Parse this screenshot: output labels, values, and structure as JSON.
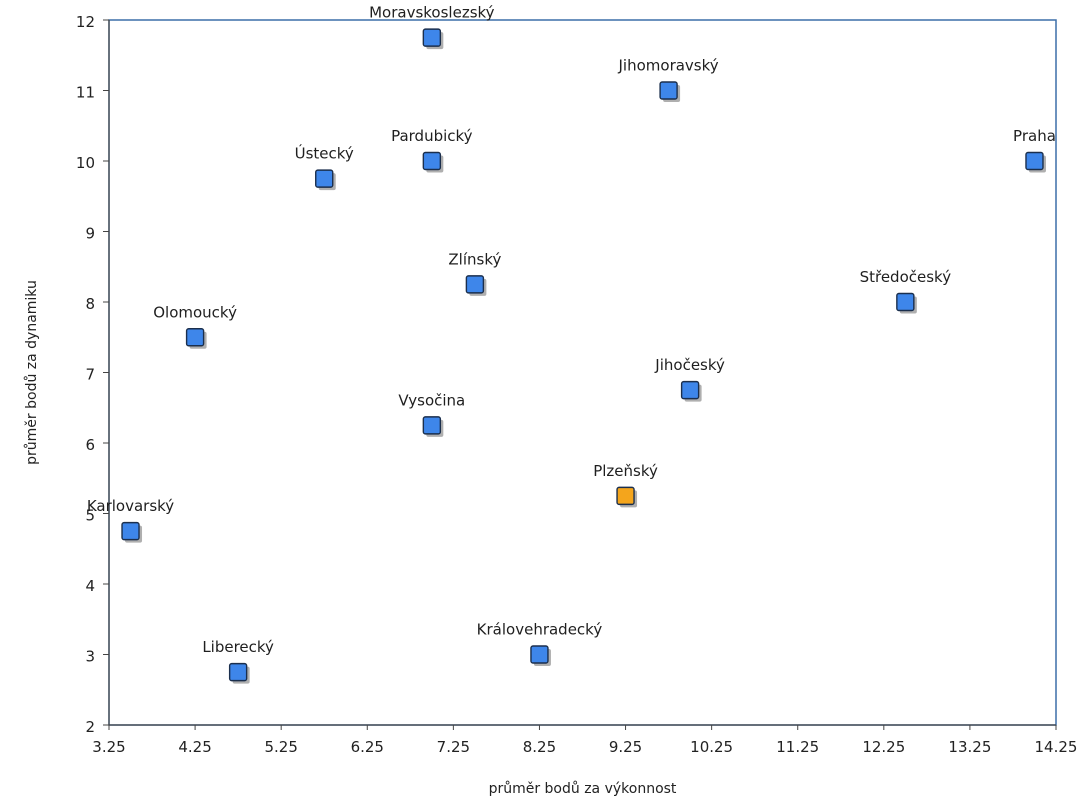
{
  "chart_data": {
    "type": "scatter",
    "xlabel": "průměr bodů za výkonnost",
    "ylabel": "průměr bodů za dynamiku",
    "xlim": [
      3.25,
      14.25
    ],
    "ylim": [
      2,
      12
    ],
    "x_ticks": [
      "3.25",
      "4.25",
      "5.25",
      "6.25",
      "7.25",
      "8.25",
      "9.25",
      "10.25",
      "11.25",
      "12.25",
      "13.25",
      "14.25"
    ],
    "y_ticks": [
      "2",
      "3",
      "4",
      "5",
      "6",
      "7",
      "8",
      "9",
      "10",
      "11",
      "12"
    ],
    "grid": true,
    "colors": {
      "default": "#3e86ea",
      "highlight": "#f4a51c"
    },
    "points": [
      {
        "label": "Moravskoslezský",
        "x": 7.0,
        "y": 11.75,
        "highlight": false
      },
      {
        "label": "Jihomoravský",
        "x": 9.75,
        "y": 11.0,
        "highlight": false
      },
      {
        "label": "Praha",
        "x": 14.0,
        "y": 10.0,
        "highlight": false
      },
      {
        "label": "Ústecký",
        "x": 5.75,
        "y": 9.75,
        "highlight": false
      },
      {
        "label": "Pardubický",
        "x": 7.0,
        "y": 10.0,
        "highlight": false
      },
      {
        "label": "Zlínský",
        "x": 7.5,
        "y": 8.25,
        "highlight": false
      },
      {
        "label": "Středočeský",
        "x": 12.5,
        "y": 8.0,
        "highlight": false
      },
      {
        "label": "Olomoucký",
        "x": 4.25,
        "y": 7.5,
        "highlight": false
      },
      {
        "label": "Jihočeský",
        "x": 10.0,
        "y": 6.75,
        "highlight": false
      },
      {
        "label": "Vysočina",
        "x": 7.0,
        "y": 6.25,
        "highlight": false
      },
      {
        "label": "Plzeňský",
        "x": 9.25,
        "y": 5.25,
        "highlight": true
      },
      {
        "label": "Karlovarský",
        "x": 3.5,
        "y": 4.75,
        "highlight": false
      },
      {
        "label": "Liberecký",
        "x": 4.75,
        "y": 2.75,
        "highlight": false
      },
      {
        "label": "Královehradecký",
        "x": 8.25,
        "y": 3.0,
        "highlight": false
      }
    ]
  }
}
